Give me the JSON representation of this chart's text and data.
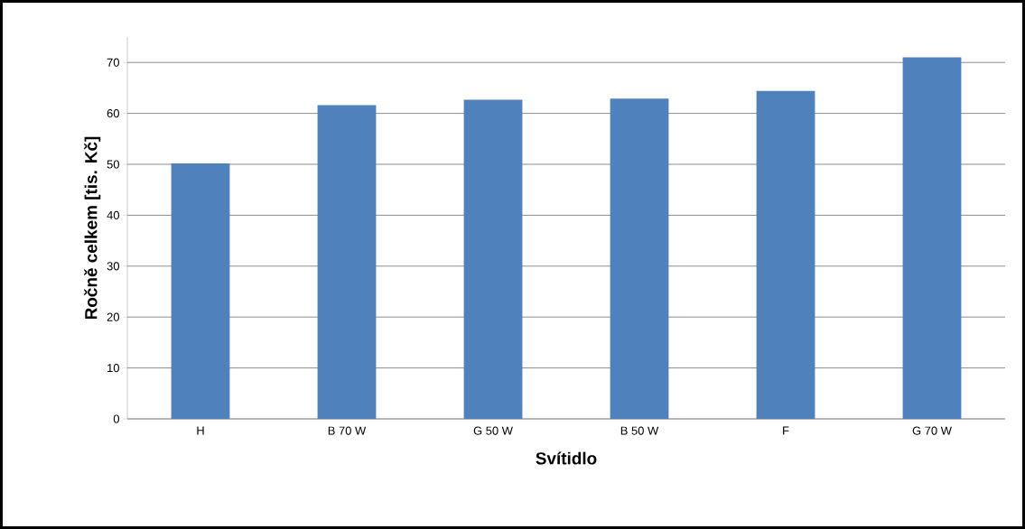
{
  "chart_data": {
    "type": "bar",
    "xlabel": "Svítidlo",
    "ylabel": "Ročně celkem [tis. Kč]",
    "categories": [
      "H",
      "B 70 W",
      "G 50 W",
      "B 50 W",
      "F",
      "G 70 W"
    ],
    "values": [
      50.2,
      61.6,
      62.7,
      62.9,
      64.4,
      71.0
    ],
    "color": "#4f81bd",
    "ylim": [
      0,
      75
    ],
    "yticks": [
      0,
      10,
      20,
      30,
      40,
      50,
      60,
      70
    ],
    "grid": "y"
  }
}
